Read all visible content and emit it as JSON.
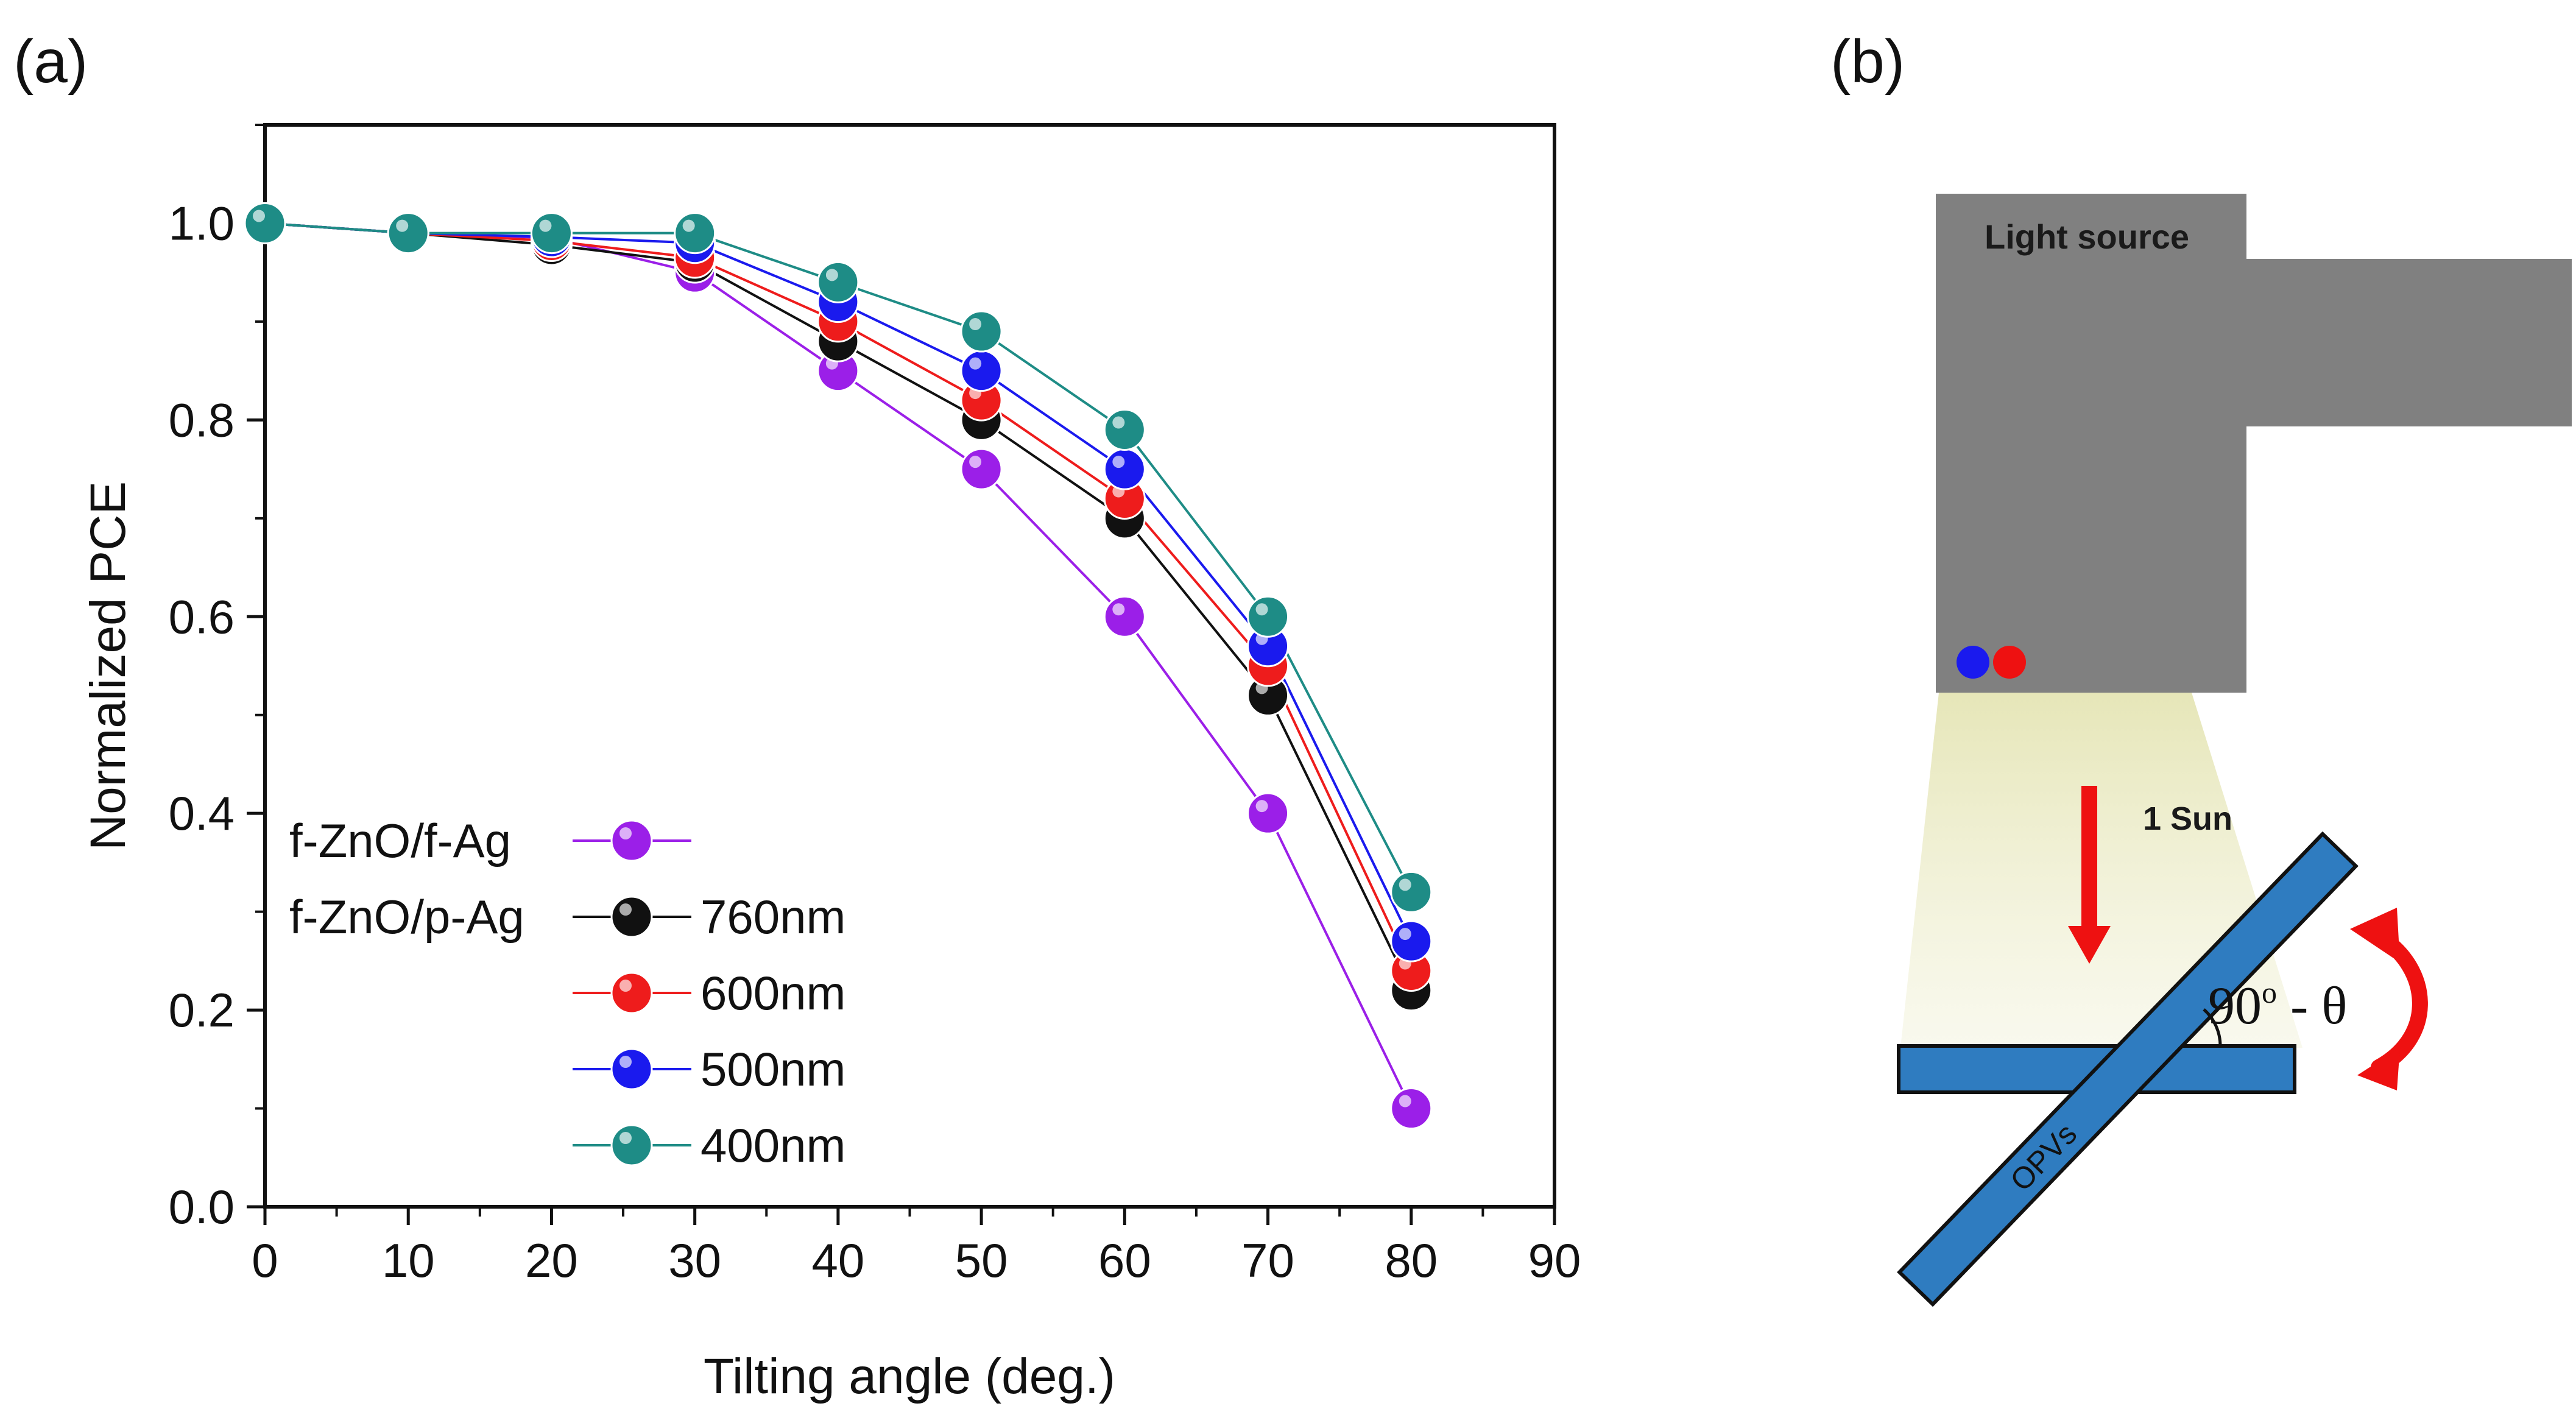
{
  "panel_a_label": "(a)",
  "panel_b_label": "(b)",
  "chart_data": {
    "type": "line",
    "title": "",
    "xlabel": "Tilting angle (deg.)",
    "ylabel": "Normalized PCE",
    "xlim": [
      0,
      90
    ],
    "ylim": [
      0,
      1.1
    ],
    "x_ticks": [
      "0",
      "10",
      "20",
      "30",
      "40",
      "50",
      "60",
      "70",
      "80",
      "90"
    ],
    "y_ticks": [
      "0.0",
      "0.2",
      "0.4",
      "0.6",
      "0.8",
      "1.0"
    ],
    "x_tick_values": [
      0,
      10,
      20,
      30,
      40,
      50,
      60,
      70,
      80,
      90
    ],
    "y_tick_values": [
      0,
      0.2,
      0.4,
      0.6,
      0.8,
      1.0
    ],
    "x": [
      0,
      10,
      20,
      30,
      40,
      50,
      60,
      70,
      80
    ],
    "legend_position": "bottom-left",
    "legend_groups": [
      "f-ZnO/f-Ag",
      "f-ZnO/p-Ag"
    ],
    "series": [
      {
        "name": "f-ZnO/f-Ag",
        "label": "",
        "color": "#9b1fe8",
        "values": [
          1.0,
          0.99,
          0.985,
          0.95,
          0.85,
          0.75,
          0.6,
          0.4,
          0.1
        ]
      },
      {
        "name": "f-ZnO/p-Ag 760nm",
        "label": "760nm",
        "color": "#111111",
        "values": [
          1.0,
          0.99,
          0.978,
          0.96,
          0.88,
          0.8,
          0.7,
          0.52,
          0.22
        ]
      },
      {
        "name": "f-ZnO/p-Ag 600nm",
        "label": "600nm",
        "color": "#ee1c1c",
        "values": [
          1.0,
          0.99,
          0.982,
          0.965,
          0.9,
          0.82,
          0.72,
          0.55,
          0.24
        ]
      },
      {
        "name": "f-ZnO/p-Ag 500nm",
        "label": "500nm",
        "color": "#1a1aee",
        "values": [
          1.0,
          0.99,
          0.986,
          0.98,
          0.92,
          0.85,
          0.75,
          0.57,
          0.27
        ]
      },
      {
        "name": "f-ZnO/p-Ag 400nm",
        "label": "400nm",
        "color": "#1e8c86",
        "values": [
          1.0,
          0.99,
          0.99,
          0.99,
          0.94,
          0.89,
          0.79,
          0.6,
          0.32
        ]
      }
    ]
  },
  "diagram": {
    "light_source_label": "Light source",
    "sun_label": "1 Sun",
    "opv_label": "OPVs",
    "angle_label": "90",
    "angle_superscript": "o",
    "angle_suffix": " - θ",
    "colors": {
      "housing": "#808080",
      "beam": "#e8e8bf",
      "opv": "#2f7cc0",
      "arrow": "#ee1111",
      "dot_blue": "#1a1aee",
      "dot_red": "#ee1111"
    }
  }
}
